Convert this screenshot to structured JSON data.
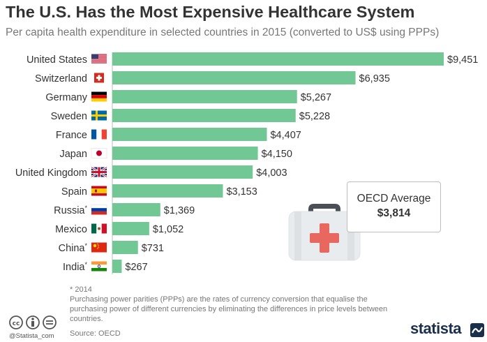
{
  "header": {
    "title": "The U.S. Has the Most Expensive Healthcare System",
    "subtitle": "Per capita health expenditure in selected countries in 2015 (converted to US$ using PPPs)"
  },
  "chart_data": {
    "type": "bar",
    "orientation": "horizontal",
    "title": "The U.S. Has the Most Expensive Healthcare System",
    "subtitle": "Per capita health expenditure in selected countries in 2015 (converted to US$ using PPPs)",
    "xlabel": "",
    "ylabel": "",
    "xlim": [
      0,
      9451
    ],
    "grid": false,
    "bar_color": "#72c895",
    "value_prefix": "$",
    "categories": [
      "United States",
      "Switzerland",
      "Germany",
      "Sweden",
      "France",
      "Japan",
      "United Kingdom",
      "Spain",
      "Russia",
      "Mexico",
      "China",
      "India"
    ],
    "values": [
      9451,
      6935,
      5267,
      5228,
      4407,
      4150,
      4003,
      3153,
      1369,
      1052,
      731,
      267
    ],
    "value_labels": [
      "$9,451",
      "$6,935",
      "$5,267",
      "$5,228",
      "$4,407",
      "$4,150",
      "$4,003",
      "$3,153",
      "$1,369",
      "$1,052",
      "$731",
      "$267"
    ],
    "asterisk": [
      false,
      false,
      false,
      false,
      false,
      false,
      false,
      false,
      true,
      false,
      true,
      true
    ],
    "flags": [
      "us-flag",
      "ch-flag",
      "de-flag",
      "se-flag",
      "fr-flag",
      "jp-flag",
      "gb-flag",
      "es-flag",
      "ru-flag",
      "mx-flag",
      "cn-flag",
      "in-flag"
    ],
    "annotations": [
      {
        "label": "OECD Average",
        "value": "$3,814"
      }
    ]
  },
  "oecd": {
    "label": "OECD Average",
    "value": "$3,814"
  },
  "footnote": {
    "asterisk": "* 2014",
    "text": "Purchasing power parities (PPPs) are the rates of currency conversion that equalise the purchasing power of different currencies by eliminating the differences in price levels between countries."
  },
  "source": "Source: OECD",
  "branding": {
    "handle": "@Statista_com",
    "logo": "statista"
  },
  "colors": {
    "bar": "#72c895",
    "kit_red": "#e8675e",
    "kit_body": "#e9ecee",
    "brand": "#1a2f4b"
  }
}
